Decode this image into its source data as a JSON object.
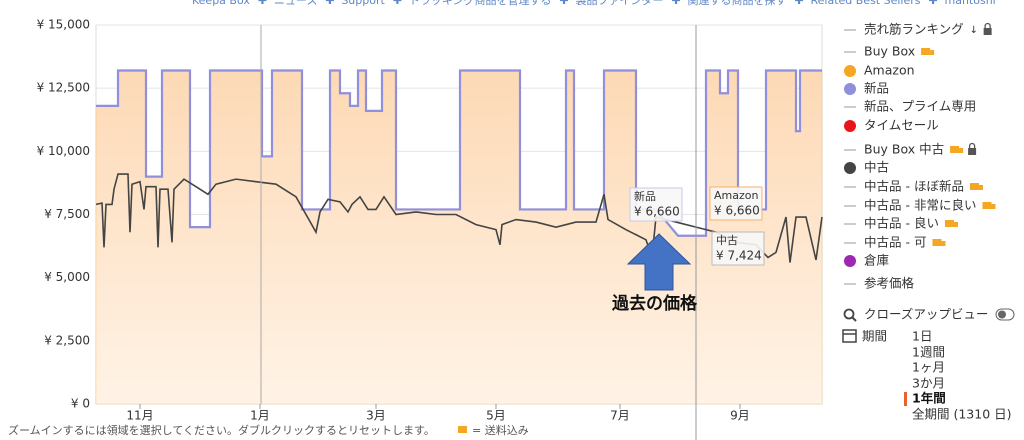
{
  "nav": [
    "Keepa Box",
    "ニュース",
    "Support",
    "トラッキング商品を管理する",
    "製品ファインダー",
    "関連する商品を探す",
    "Related Best Sellers",
    "mantoshi"
  ],
  "chart_data": {
    "type": "line",
    "xlim": [
      0,
      363
    ],
    "xticks": [
      {
        "value": 22,
        "label": "11月"
      },
      {
        "value": 82,
        "label": "1月"
      },
      {
        "value": 140,
        "label": "3月"
      },
      {
        "value": 200,
        "label": "5月"
      },
      {
        "value": 262,
        "label": "7月"
      },
      {
        "value": 322,
        "label": "9月"
      }
    ],
    "ylim": [
      0,
      15000
    ],
    "yticks": [
      {
        "value": 0,
        "label": "¥ 0"
      },
      {
        "value": 2500,
        "label": "¥ 2,500"
      },
      {
        "value": 5000,
        "label": "¥ 5,000"
      },
      {
        "value": 7500,
        "label": "¥ 7,500"
      },
      {
        "value": 10000,
        "label": "¥ 10,000"
      },
      {
        "value": 12500,
        "label": "¥ 12,500"
      },
      {
        "value": 15000,
        "label": "¥ 15,000"
      }
    ],
    "grid": true,
    "series": [
      {
        "name": "売れ筋ランキング",
        "marker": "line",
        "color": "#999999",
        "lock": true
      },
      {
        "name": "Buy Box",
        "marker": "line",
        "color": "#999999",
        "truck": true
      },
      {
        "name": "Amazon",
        "marker": "dot",
        "color": "#f5a623",
        "area": true,
        "x": [
          0,
          11,
          11,
          25,
          25,
          33,
          33,
          47,
          47,
          57,
          57,
          83,
          83,
          88,
          88,
          103,
          103,
          117,
          117,
          122,
          122,
          127,
          127,
          131,
          131,
          135,
          135,
          143,
          143,
          150,
          150,
          182,
          182,
          212,
          212,
          235,
          235,
          239,
          239,
          254,
          254,
          270,
          270,
          280,
          291,
          305,
          305,
          312,
          312,
          316,
          316,
          321,
          321,
          335,
          335,
          350,
          350,
          352,
          352,
          363
        ],
        "values": [
          11800,
          11800,
          13200,
          13200,
          9000,
          9000,
          13200,
          13200,
          7000,
          7000,
          13200,
          13200,
          9800,
          9800,
          13200,
          13200,
          7700,
          7700,
          13200,
          13200,
          12300,
          12300,
          11800,
          11800,
          13200,
          13200,
          11600,
          11600,
          13200,
          13200,
          7700,
          7700,
          13200,
          13200,
          7700,
          7700,
          13200,
          13200,
          7700,
          7700,
          13200,
          13200,
          7700,
          7700,
          6660,
          6660,
          13200,
          13200,
          12300,
          12300,
          13200,
          13200,
          7700,
          7700,
          13200,
          13200,
          10800,
          10800,
          13200,
          13200
        ]
      },
      {
        "name": "新品",
        "marker": "dot",
        "color": "#8f8fdc",
        "x": [
          0,
          11,
          11,
          25,
          25,
          33,
          33,
          47,
          47,
          57,
          57,
          83,
          83,
          88,
          88,
          103,
          103,
          117,
          117,
          122,
          122,
          127,
          127,
          131,
          131,
          135,
          135,
          143,
          143,
          150,
          150,
          182,
          182,
          212,
          212,
          235,
          235,
          239,
          239,
          254,
          254,
          270,
          270,
          280,
          291,
          305,
          305,
          312,
          312,
          316,
          316,
          321,
          321,
          335,
          335,
          350,
          350,
          352,
          352,
          363
        ],
        "values": [
          11800,
          11800,
          13200,
          13200,
          9000,
          9000,
          13200,
          13200,
          7000,
          7000,
          13200,
          13200,
          9800,
          9800,
          13200,
          13200,
          7700,
          7700,
          13200,
          13200,
          12300,
          12300,
          11800,
          11800,
          13200,
          13200,
          11600,
          11600,
          13200,
          13200,
          7700,
          7700,
          13200,
          13200,
          7700,
          7700,
          13200,
          13200,
          7700,
          7700,
          13200,
          13200,
          7700,
          7700,
          6660,
          6660,
          13200,
          13200,
          12300,
          12300,
          13200,
          13200,
          7700,
          7700,
          13200,
          13200,
          10800,
          10800,
          13200,
          13200
        ]
      },
      {
        "name": "新品、プライム専用",
        "marker": "line",
        "color": "#999999"
      },
      {
        "name": "タイムセール",
        "marker": "dot",
        "color": "#e8151b"
      },
      {
        "name": "Buy Box 中古",
        "marker": "line",
        "color": "#999999",
        "truck": true,
        "lock": true
      },
      {
        "name": "中古",
        "marker": "dot",
        "color": "#444444",
        "x": [
          0,
          3,
          4,
          5,
          8,
          9,
          11,
          16,
          17,
          18,
          22,
          24,
          25,
          30,
          31,
          32,
          36,
          38,
          39,
          44,
          50,
          56,
          60,
          70,
          80,
          90,
          100,
          105,
          110,
          112,
          116,
          122,
          126,
          128,
          132,
          136,
          140,
          144,
          150,
          160,
          170,
          180,
          190,
          200,
          202,
          203,
          210,
          220,
          230,
          240,
          250,
          254,
          256,
          265,
          275,
          278,
          280,
          290,
          300,
          305,
          310,
          320,
          330,
          336,
          340,
          345,
          347,
          350,
          355,
          360,
          363
        ],
        "values": [
          7900,
          7950,
          6200,
          7900,
          7900,
          8500,
          9100,
          9100,
          6800,
          8700,
          8800,
          7700,
          8600,
          8600,
          6200,
          8500,
          8500,
          6400,
          8500,
          8900,
          8600,
          8300,
          8700,
          8900,
          8800,
          8700,
          8200,
          7500,
          6800,
          7600,
          8100,
          8000,
          7600,
          7900,
          8200,
          7700,
          7700,
          8200,
          7500,
          7600,
          7500,
          7500,
          7100,
          6900,
          6300,
          7100,
          7300,
          7200,
          7000,
          7200,
          7200,
          8300,
          7300,
          6900,
          6500,
          5800,
          7400,
          7200,
          7000,
          6900,
          6800,
          6400,
          6300,
          5800,
          6000,
          7400,
          5600,
          7400,
          7400,
          5700,
          7400
        ]
      },
      {
        "name": "中古品 - ほぼ新品",
        "marker": "line",
        "color": "#999999",
        "truck": true
      },
      {
        "name": "中古品 - 非常に良い",
        "marker": "line",
        "color": "#999999",
        "truck": true
      },
      {
        "name": "中古品 - 良い",
        "marker": "line",
        "color": "#999999",
        "truck": true
      },
      {
        "name": "中古品 - 可",
        "marker": "line",
        "color": "#999999",
        "truck": true
      },
      {
        "name": "倉庫",
        "marker": "dot",
        "color": "#9c27b0"
      },
      {
        "name": "参考価格",
        "marker": "line",
        "color": "#999999"
      }
    ],
    "tooltips": [
      {
        "title": "新品",
        "text": "¥ 6,660"
      },
      {
        "title": "Amazon",
        "text": "¥ 6,660"
      },
      {
        "title": "中古",
        "text": "¥ 7,424"
      }
    ],
    "annotation": "過去の価格"
  },
  "closeup": "クローズアップビュー",
  "period": {
    "label": "期間",
    "options": [
      "1日",
      "1週間",
      "1ヶ月",
      "3か月",
      "1年間",
      "全期間 (1310 日)"
    ],
    "selected": 4
  },
  "footer": {
    "hint": "ズームインするには領域を選択してください。ダブルクリックするとリセットします。",
    "shipping": "= 送料込み"
  }
}
